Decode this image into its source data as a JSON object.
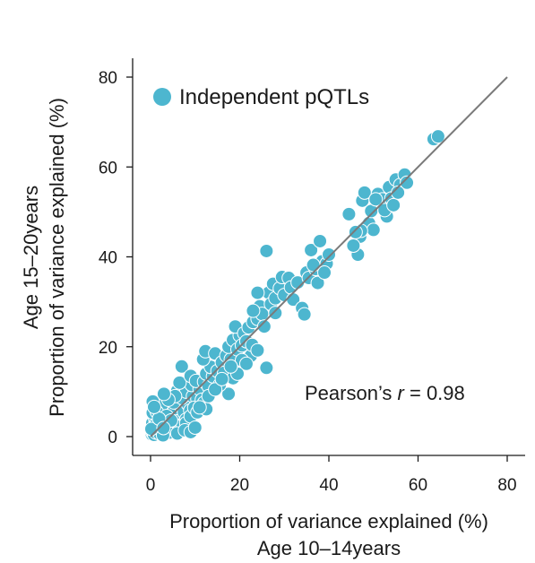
{
  "chart_data": {
    "type": "scatter",
    "xlabel_line1": "Proportion of variance explained (%)",
    "xlabel_line2": "Age 10–14years",
    "ylabel_line1": "Age 15–20years",
    "ylabel_line2": "Proportion of variance explained (%)",
    "xlim": [
      0,
      80
    ],
    "ylim": [
      0,
      80
    ],
    "xticks": [
      "0",
      "20",
      "40",
      "60",
      "80"
    ],
    "yticks": [
      "0",
      "20",
      "40",
      "60",
      "80"
    ],
    "xtick_values": [
      0,
      20,
      40,
      60,
      80
    ],
    "ytick_values": [
      0,
      20,
      40,
      60,
      80
    ],
    "grid": false,
    "legend_position": "top-left",
    "annotation_prefix": "Pearson’s ",
    "annotation_var": "r",
    "annotation_suffix": " = 0.98",
    "colors": {
      "points": "#4db6cf",
      "point_edge": "#ffffff",
      "fit_line": "#7a7a7a",
      "axis": "#1a1a1a"
    },
    "fit_line": {
      "x": [
        0,
        80
      ],
      "y": [
        0,
        80
      ]
    },
    "series": [
      {
        "name": "Independent pQTLs",
        "points": [
          [
            0.3,
            0.5
          ],
          [
            0.5,
            0.8
          ],
          [
            0.8,
            0.4
          ],
          [
            1.0,
            1.2
          ],
          [
            1.2,
            0.9
          ],
          [
            1.5,
            1.5
          ],
          [
            0.6,
            2.0
          ],
          [
            2.0,
            0.7
          ],
          [
            1.8,
            2.2
          ],
          [
            2.3,
            1.6
          ],
          [
            0.4,
            3.0
          ],
          [
            3.0,
            0.6
          ],
          [
            2.6,
            2.9
          ],
          [
            3.2,
            2.1
          ],
          [
            1.1,
            3.6
          ],
          [
            3.7,
            1.3
          ],
          [
            0.9,
            4.5
          ],
          [
            4.2,
            0.9
          ],
          [
            3.5,
            3.8
          ],
          [
            4.0,
            2.8
          ],
          [
            2.2,
            4.6
          ],
          [
            4.8,
            2.0
          ],
          [
            5.0,
            4.4
          ],
          [
            4.4,
            5.2
          ],
          [
            5.6,
            3.3
          ],
          [
            3.1,
            5.8
          ],
          [
            6.0,
            5.4
          ],
          [
            5.4,
            6.3
          ],
          [
            0.5,
            5.3
          ],
          [
            1.6,
            6.2
          ],
          [
            6.5,
            1.5
          ],
          [
            7.2,
            2.5
          ],
          [
            6.8,
            6.8
          ],
          [
            7.5,
            5.4
          ],
          [
            8.0,
            3.8
          ],
          [
            5.2,
            7.6
          ],
          [
            2.5,
            7.0
          ],
          [
            0.5,
            7.8
          ],
          [
            1.4,
            5.5
          ],
          [
            1.2,
            2.6
          ],
          [
            2.8,
            0.3
          ],
          [
            0.2,
            1.7
          ],
          [
            3.6,
            4.6
          ],
          [
            4.6,
            3.6
          ],
          [
            1.9,
            4.0
          ],
          [
            0.8,
            6.6
          ],
          [
            2.9,
            1.9
          ],
          [
            8.4,
            7.2
          ],
          [
            7.0,
            8.6
          ],
          [
            8.9,
            5.8
          ],
          [
            6.0,
            10.2
          ],
          [
            8.0,
            10.0
          ],
          [
            9.5,
            9.0
          ],
          [
            10.5,
            8.4
          ],
          [
            9.2,
            11.5
          ],
          [
            11.0,
            10.6
          ],
          [
            6.5,
            12.0
          ],
          [
            7.0,
            15.6
          ],
          [
            9.0,
            13.5
          ],
          [
            10.2,
            12.4
          ],
          [
            8.0,
            3.0
          ],
          [
            9.0,
            4.5
          ],
          [
            6.0,
            0.7
          ],
          [
            7.7,
            1.4
          ],
          [
            9.0,
            1.0
          ],
          [
            9.8,
            6.4
          ],
          [
            10.5,
            5.4
          ],
          [
            11.5,
            8.2
          ],
          [
            12.0,
            7.5
          ],
          [
            12.5,
            6.1
          ],
          [
            12.0,
            12.2
          ],
          [
            13.0,
            11.2
          ],
          [
            12.5,
            14.0
          ],
          [
            14.0,
            13.4
          ],
          [
            13.5,
            15.5
          ],
          [
            15.0,
            14.6
          ],
          [
            11.8,
            17.2
          ],
          [
            12.3,
            19.0
          ],
          [
            14.5,
            18.5
          ],
          [
            16.0,
            16.5
          ],
          [
            16.5,
            14.2
          ],
          [
            17.0,
            18.0
          ],
          [
            18.0,
            17.2
          ],
          [
            17.5,
            20.0
          ],
          [
            18.5,
            21.5
          ],
          [
            19.5,
            19.4
          ],
          [
            20.0,
            22.5
          ],
          [
            20.5,
            20.3
          ],
          [
            19.0,
            24.5
          ],
          [
            21.0,
            23.0
          ],
          [
            21.5,
            21.2
          ],
          [
            22.0,
            24.3
          ],
          [
            22.5,
            18.0
          ],
          [
            23.0,
            25.5
          ],
          [
            17.5,
            9.5
          ],
          [
            18.5,
            13.0
          ],
          [
            20.5,
            17.0
          ],
          [
            21.5,
            16.2
          ],
          [
            22.8,
            20.4
          ],
          [
            24.0,
            19.2
          ],
          [
            24.0,
            26.2
          ],
          [
            24.5,
            29.0
          ],
          [
            25.0,
            27.3
          ],
          [
            25.5,
            24.5
          ],
          [
            26.0,
            15.3
          ],
          [
            26.0,
            41.3
          ],
          [
            26.5,
            32.0
          ],
          [
            27.0,
            29.5
          ],
          [
            27.5,
            34.0
          ],
          [
            28.0,
            30.8
          ],
          [
            29.0,
            33.0
          ],
          [
            29.5,
            35.5
          ],
          [
            30.0,
            31.5
          ],
          [
            31.0,
            35.3
          ],
          [
            31.5,
            33.2
          ],
          [
            32.0,
            30.5
          ],
          [
            33.0,
            34.3
          ],
          [
            34.0,
            28.6
          ],
          [
            34.5,
            27.2
          ],
          [
            35.0,
            36.5
          ],
          [
            35.5,
            35.3
          ],
          [
            36.0,
            41.5
          ],
          [
            37.0,
            37.3
          ],
          [
            37.5,
            34.2
          ],
          [
            38.0,
            43.5
          ],
          [
            38.5,
            39.0
          ],
          [
            39.5,
            38.5
          ],
          [
            40.0,
            40.5
          ],
          [
            39.0,
            36.5
          ],
          [
            36.5,
            38.2
          ],
          [
            44.5,
            49.5
          ],
          [
            46.5,
            40.5
          ],
          [
            47.0,
            44.5
          ],
          [
            47.5,
            52.5
          ],
          [
            48.0,
            54.3
          ],
          [
            49.0,
            47.5
          ],
          [
            49.5,
            50.2
          ],
          [
            50.0,
            46.0
          ],
          [
            51.0,
            54.0
          ],
          [
            52.0,
            52.8
          ],
          [
            53.0,
            49.0
          ],
          [
            53.5,
            55.5
          ],
          [
            54.0,
            53.0
          ],
          [
            55.0,
            57.2
          ],
          [
            56.0,
            56.0
          ],
          [
            57.0,
            58.3
          ],
          [
            57.5,
            56.5
          ],
          [
            47.2,
            45.8
          ],
          [
            52.5,
            50.4
          ],
          [
            54.5,
            51.5
          ],
          [
            63.5,
            66.2
          ],
          [
            64.5,
            66.8
          ],
          [
            55.5,
            54.3
          ],
          [
            50.5,
            52.8
          ],
          [
            45.5,
            42.5
          ],
          [
            46.0,
            45.5
          ],
          [
            24.0,
            32.0
          ],
          [
            23.0,
            28.0
          ],
          [
            28.0,
            27.5
          ],
          [
            15.5,
            11.5
          ],
          [
            13.0,
            9.0
          ],
          [
            11.0,
            6.5
          ],
          [
            10.0,
            2.0
          ],
          [
            5.5,
            9.0
          ],
          [
            4.0,
            8.2
          ],
          [
            3.0,
            9.5
          ],
          [
            14.5,
            10.5
          ],
          [
            16.0,
            12.8
          ],
          [
            19.5,
            14.0
          ],
          [
            18.0,
            15.6
          ]
        ]
      }
    ]
  }
}
